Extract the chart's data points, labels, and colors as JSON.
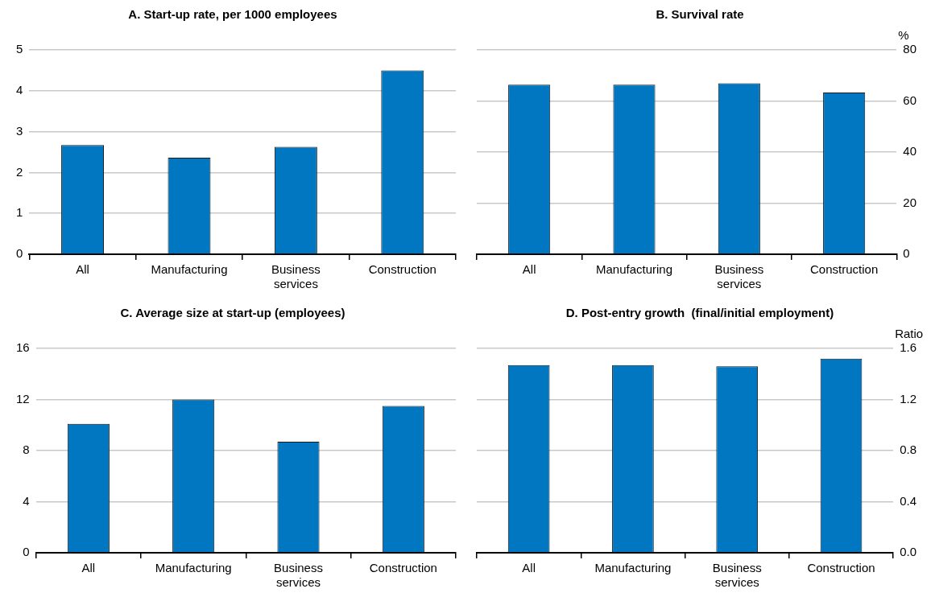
{
  "chart_data": [
    {
      "type": "bar",
      "title": "A. Start-up rate, per 1000 employees",
      "categories": [
        "All",
        "Manufacturing",
        "Business services",
        "Construction"
      ],
      "series": [
        {
          "color": "#0177c1",
          "values": [
            2.67,
            2.36,
            2.63,
            4.5
          ]
        }
      ],
      "ylim": [
        0,
        5
      ],
      "yticks": [
        0,
        1,
        2,
        3,
        4,
        5
      ],
      "grid": "y",
      "legend": false
    },
    {
      "type": "bar",
      "title": "B. Survival rate",
      "y2label": "%",
      "categories": [
        "All",
        "Manufacturing",
        "Business services",
        "Construction"
      ],
      "series": [
        {
          "color": "#0177c1",
          "values": [
            66.4,
            66.4,
            66.9,
            63.3
          ],
          "axis": "y2"
        }
      ],
      "y2lim": [
        0,
        80
      ],
      "y2ticks": [
        0,
        20,
        40,
        60,
        80
      ],
      "grid": "y",
      "legend": false
    },
    {
      "type": "bar",
      "title": "C. Average size at start-up (employees)",
      "categories": [
        "All",
        "Manufacturing",
        "Business services",
        "Construction"
      ],
      "series": [
        {
          "color": "#0177c1",
          "values": [
            10.1,
            12.0,
            8.7,
            11.5
          ]
        }
      ],
      "ylim": [
        0,
        16
      ],
      "yticks": [
        0,
        4,
        8,
        12,
        16
      ],
      "grid": "y",
      "legend": false
    },
    {
      "type": "bar",
      "title": "D. Post-entry growth  (final/initial employment)",
      "y2label": "Ratio",
      "categories": [
        "All",
        "Manufacturing",
        "Business services",
        "Construction"
      ],
      "series": [
        {
          "color": "#0177c1",
          "values": [
            1.47,
            1.47,
            1.46,
            1.52
          ],
          "axis": "y2"
        }
      ],
      "y2lim": [
        0,
        1.6
      ],
      "y2ticks": [
        {
          "value": 0,
          "label": "0.0"
        },
        0.4,
        0.8,
        1.2,
        1.6
      ],
      "grid": "y",
      "legend": false
    }
  ]
}
